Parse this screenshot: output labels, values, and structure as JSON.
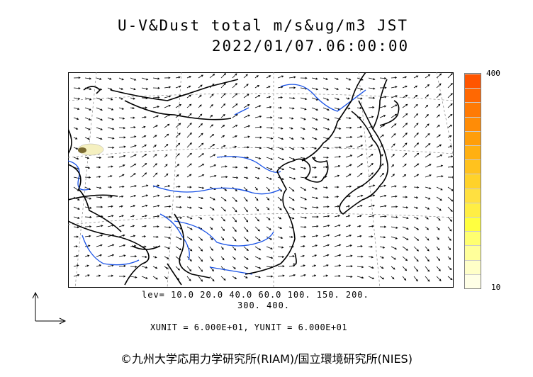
{
  "title": {
    "line1": "U-V&Dust total m/s&ug/m3 JST",
    "line2": "2022/01/07.06:00:00"
  },
  "colorbar": {
    "max_label": "400",
    "min_label": "10",
    "colors": [
      "#ffffe6",
      "#ffffc8",
      "#ffff9a",
      "#ffff70",
      "#ffff40",
      "#ffee44",
      "#ffe040",
      "#ffd22a",
      "#ffc21e",
      "#ffb012",
      "#ff9e0a",
      "#ff8c06",
      "#ff7a04",
      "#ff6802",
      "#ff5500"
    ]
  },
  "levels": {
    "line1": "lev= 10.0 20.0 40.0 60.0 100. 150. 200.",
    "line2": "300. 400."
  },
  "units_line": "XUNIT = 6.000E+01, YUNIT = 6.000E+01",
  "copyright": "©九州大学応用力学研究所(RIAM)/国立環境研究所(NIES)",
  "colors": {
    "coast": "#000000",
    "rivers": "#1a53e6",
    "dust_plume": "#f5f0c0"
  }
}
